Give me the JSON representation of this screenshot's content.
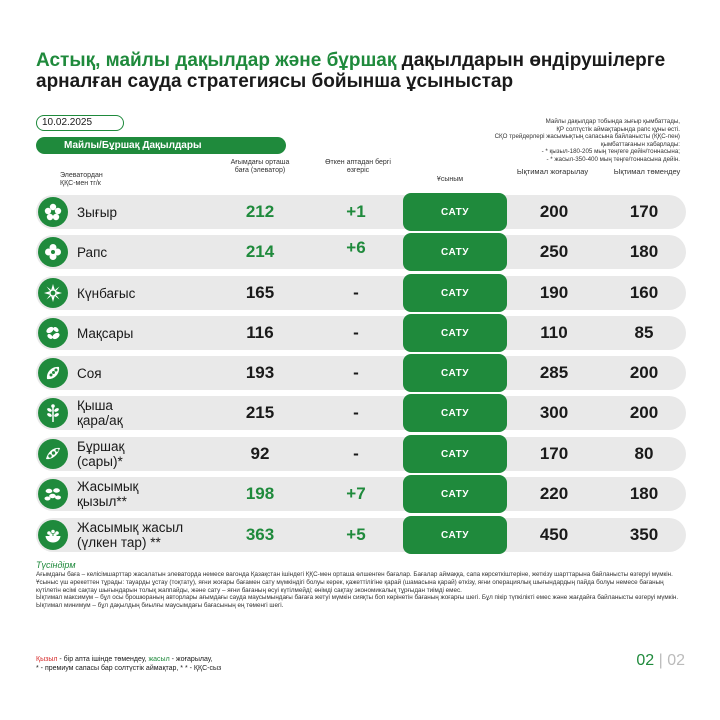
{
  "title": {
    "green": "Астық, майлы дақылдар және бұршақ",
    "rest": " дақылдарын өндірушілерге арналған сауда стратегиясы бойынша ұсыныстар"
  },
  "date": "10.02.2025",
  "section": "Майлы/Бұршақ Дақылдары",
  "note_top": "Майлы дақылдар тобында зығыр қымбаттады,\nҚР солтүстік аймақтарында рапс құны өсті.\nСҚО трейдерлері жасымықтың сапасына байланысты (ҚҚС-пен)\nқымбаттағанын хабарлады:\n- * қызыл-180-205 мың теңгеге дейін/тоннасына;\n- * жасыл-350-400 мың теңге/тоннасына дейін.",
  "headers": {
    "elevator": "Элеватордан\nҚҚС-мен тг/к",
    "avg_price": "Ағымдағы орташа\nбаға (элеватор)",
    "change": "Өткен аптадан бергі\nөзгеріс",
    "recommendation": "Ұсыным",
    "likely_high": "Ықтимал жоғарылау",
    "likely_low": "Ықтимал төмендеу"
  },
  "rows": [
    {
      "name": "Зығыр",
      "price": "212",
      "change": "+1",
      "action": "САТУ",
      "high": "200",
      "low": "170",
      "icon": "flax-flower-icon"
    },
    {
      "name": "Рапс",
      "price": "214",
      "change": "+6",
      "action": "САТУ",
      "high": "250",
      "low": "180",
      "icon": "rapeseed-flower-icon"
    },
    {
      "name": "Күнбағыс",
      "price": "165",
      "change": "-",
      "action": "САТУ",
      "high": "190",
      "low": "160",
      "icon": "sunflower-icon"
    },
    {
      "name": "Мақсары",
      "price": "116",
      "change": "-",
      "action": "САТУ",
      "high": "110",
      "low": "85",
      "icon": "safflower-icon"
    },
    {
      "name": "Соя",
      "price": "193",
      "change": "-",
      "action": "САТУ",
      "high": "285",
      "low": "200",
      "icon": "soybean-pod-icon"
    },
    {
      "name": "Қыша\nқара/ақ",
      "price": "215",
      "change": "-",
      "action": "САТУ",
      "high": "300",
      "low": "200",
      "icon": "mustard-plant-icon"
    },
    {
      "name": "Бұршақ\n(сары)*",
      "price": "92",
      "change": "-",
      "action": "САТУ",
      "high": "170",
      "low": "80",
      "icon": "pea-pod-icon"
    },
    {
      "name": "Жасымық\nқызыл**",
      "price": "198",
      "change": "+7",
      "action": "САТУ",
      "high": "220",
      "low": "180",
      "icon": "lentil-grains-icon"
    },
    {
      "name": "Жасымық жасыл\n(үлкен тар) **",
      "price": "363",
      "change": "+5",
      "action": "САТУ",
      "high": "450",
      "low": "350",
      "icon": "lentil-bowl-icon"
    }
  ],
  "legend_title": "Түсіндірм",
  "legend_text": "Ағымдағы баға – келісімшарттар жасалатын элеваторда немесе вагонда Қазақстан ішіндегі ҚҚС-мен орташа өлшенген бағалар. Бағалар аймаққа, сапа көрсеткіштеріне, жеткізу шарттарына байланысты өзгеруі мүмкін.\nҰсыныс үш әрекеттен тұрады: тауарды ұстау (тоқтату), яғни жоғары бағамен сату мүмкіндігі болуы керек, қажеттілігіне қарай (шамасына қарай) өткізу, яғни операциялық шығындардың пайда болуы немесе бағаның күтілетін өсімі сақтау шығындарын толық жаппайды, және сату – яғни бағаның өсуі күтілмейді; өнімді сақтау экономикалық тұрғыдан тиімді емес.\nЫқтимал максимум – бұл осы брошюраның авторлары ағымдағы сауда маусымындағы бағаға жетуі мүмкін сияқты боп көрінетін бағаның жоғарғы шегі. Бұл пікір түпкілікті емес және жағдайға байланысты өзгеруі мүмкін.\nЫқтимал минимум – бұл дақылдың биылғы маусымдағы бағасының ең төменгі шегі.",
  "footnote": {
    "red_word": "Қызыл",
    "red_rest": " - бір апта ішінде төмендеу, ",
    "green_word": "жасыл",
    "green_rest": " - жоғарылау,",
    "line2": "* - премиум сапасы бар солтүстік аймақтар, * * - ҚҚС-сыз"
  },
  "page": {
    "current": "02",
    "separator": "|",
    "total": "02"
  },
  "colors": {
    "brand_green": "#1f8a3c",
    "row_bg": "#e9e9e9",
    "red": "#d62a2a"
  }
}
